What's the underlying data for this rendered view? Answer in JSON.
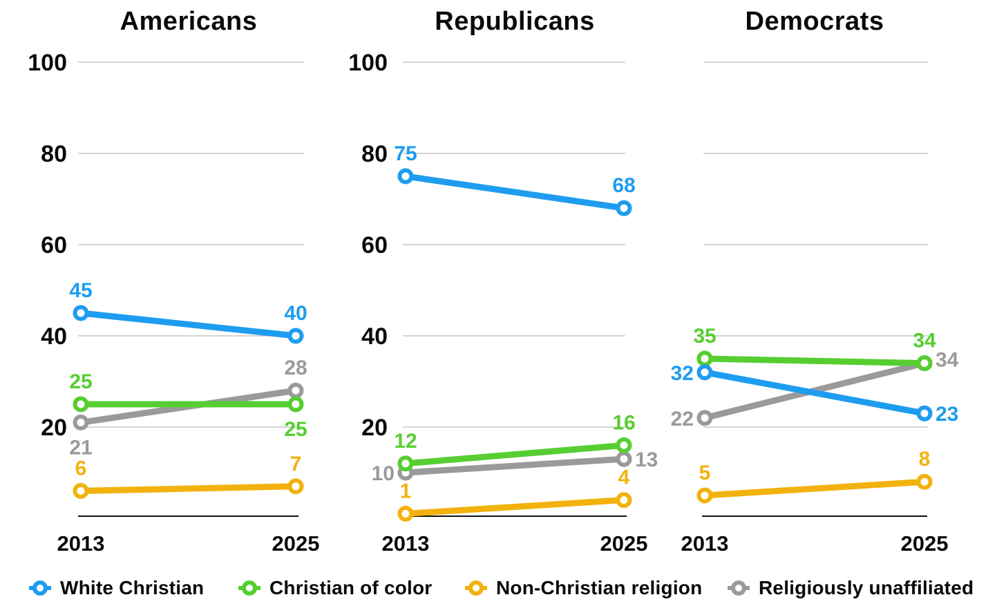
{
  "page": {
    "background": "#ffffff",
    "text_color": "#0a0a0a",
    "gridline_color": "#c7c7c7",
    "axis_color": "#111111"
  },
  "legend": {
    "position": "bottom",
    "items": [
      {
        "label": "White Christian",
        "color": "#1E9CF0"
      },
      {
        "label": "Christian of color",
        "color": "#56CE31"
      },
      {
        "label": "Non-Christian religion",
        "color": "#F2B20E"
      },
      {
        "label": "Religiously unaffiliated",
        "color": "#9A9A9A"
      }
    ]
  },
  "chart_data": [
    {
      "type": "line",
      "title": "Americans",
      "x": [
        "2013",
        "2025"
      ],
      "ylim": [
        0,
        100
      ],
      "yticks": [
        20,
        40,
        60,
        80,
        100
      ],
      "show_ytick_labels": true,
      "grid": true,
      "series": [
        {
          "name": "White Christian",
          "color": "#1E9CF0",
          "values": [
            45,
            40
          ],
          "label_pos": [
            "above",
            "above"
          ]
        },
        {
          "name": "Christian of color",
          "color": "#56CE31",
          "values": [
            25,
            25
          ],
          "label_pos": [
            "above",
            "below"
          ]
        },
        {
          "name": "Non-Christian religion",
          "color": "#F2B20E",
          "values": [
            6,
            7
          ],
          "label_pos": [
            "above",
            "above"
          ]
        },
        {
          "name": "Religiously unaffiliated",
          "color": "#9A9A9A",
          "values": [
            21,
            28
          ],
          "label_pos": [
            "below",
            "above"
          ]
        }
      ]
    },
    {
      "type": "line",
      "title": "Republicans",
      "x": [
        "2013",
        "2025"
      ],
      "ylim": [
        0,
        100
      ],
      "yticks": [
        20,
        40,
        60,
        80,
        100
      ],
      "show_ytick_labels": true,
      "grid": true,
      "series": [
        {
          "name": "White Christian",
          "color": "#1E9CF0",
          "values": [
            75,
            68
          ],
          "label_pos": [
            "above",
            "above"
          ]
        },
        {
          "name": "Christian of color",
          "color": "#56CE31",
          "values": [
            12,
            16
          ],
          "label_pos": [
            "above",
            "above"
          ]
        },
        {
          "name": "Non-Christian religion",
          "color": "#F2B20E",
          "values": [
            1,
            4
          ],
          "label_pos": [
            "above",
            "above"
          ]
        },
        {
          "name": "Religiously unaffiliated",
          "color": "#9A9A9A",
          "values": [
            10,
            13
          ],
          "label_pos": [
            "left",
            "right"
          ]
        }
      ]
    },
    {
      "type": "line",
      "title": "Democrats",
      "x": [
        "2013",
        "2025"
      ],
      "ylim": [
        0,
        100
      ],
      "yticks": [
        20,
        40,
        60,
        80,
        100
      ],
      "show_ytick_labels": false,
      "grid": true,
      "series": [
        {
          "name": "White Christian",
          "color": "#1E9CF0",
          "values": [
            32,
            23
          ],
          "label_pos": [
            "left",
            "right"
          ]
        },
        {
          "name": "Christian of color",
          "color": "#56CE31",
          "values": [
            35,
            34
          ],
          "label_pos": [
            "above",
            "above"
          ]
        },
        {
          "name": "Non-Christian religion",
          "color": "#F2B20E",
          "values": [
            5,
            8
          ],
          "label_pos": [
            "above",
            "above"
          ]
        },
        {
          "name": "Religiously unaffiliated",
          "color": "#9A9A9A",
          "values": [
            22,
            34
          ],
          "label_pos": [
            "left",
            "right_up"
          ]
        }
      ]
    }
  ]
}
